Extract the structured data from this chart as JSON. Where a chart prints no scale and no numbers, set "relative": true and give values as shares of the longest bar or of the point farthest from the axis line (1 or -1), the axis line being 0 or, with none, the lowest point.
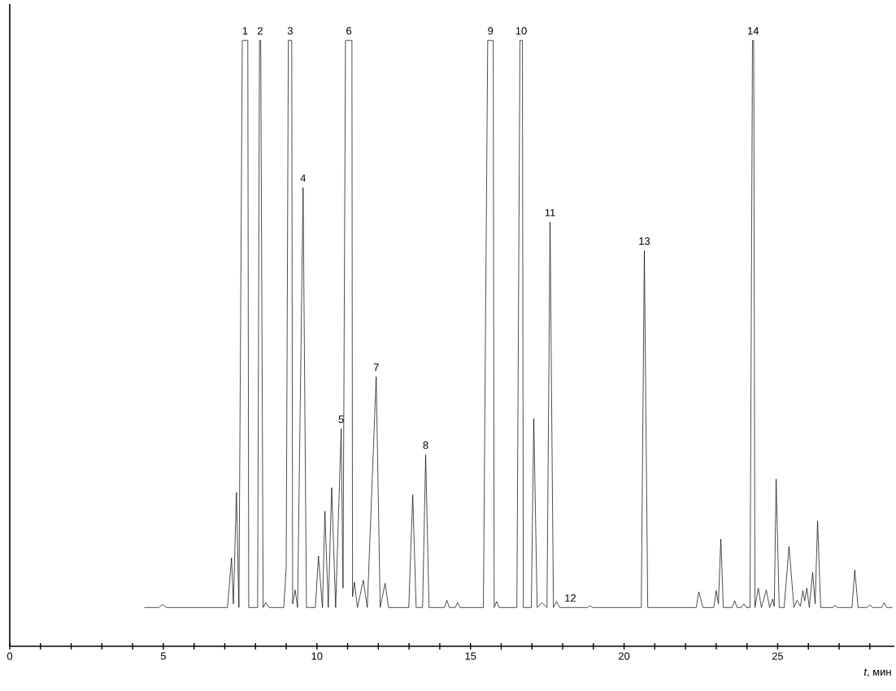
{
  "chart_data": {
    "type": "line",
    "relative": true,
    "xlabel": "*t*, мин",
    "color": "#000000",
    "xlim": [
      0,
      28.8
    ],
    "xticks": [
      0,
      {
        "value": 1,
        "label": null
      },
      {
        "value": 2,
        "label": null
      },
      {
        "value": 3,
        "label": null
      },
      {
        "value": 4,
        "label": null
      },
      5,
      {
        "value": 6,
        "label": null
      },
      {
        "value": 7,
        "label": null
      },
      {
        "value": 8,
        "label": null
      },
      {
        "value": 9,
        "label": null
      },
      10,
      {
        "value": 11,
        "label": null
      },
      {
        "value": 12,
        "label": null
      },
      {
        "value": 13,
        "label": null
      },
      {
        "value": 14,
        "label": null
      },
      15,
      {
        "value": 16,
        "label": null
      },
      {
        "value": 17,
        "label": null
      },
      {
        "value": 18,
        "label": null
      },
      {
        "value": 19,
        "label": null
      },
      20,
      {
        "value": 21,
        "label": null
      },
      {
        "value": 22,
        "label": null
      },
      {
        "value": 23,
        "label": null
      },
      {
        "value": 24,
        "label": null
      },
      25,
      {
        "value": 26,
        "label": null
      },
      {
        "value": 27,
        "label": null
      },
      {
        "value": 28,
        "label": null
      }
    ],
    "x": [
      4.39,
      4.85,
      4.97,
      5.1,
      7.09,
      7.22,
      7.28,
      7.38,
      7.46,
      7.57,
      7.75,
      7.78,
      8.07,
      8.13,
      8.17,
      8.25,
      8.33,
      8.45,
      8.92,
      9.0,
      9.07,
      9.18,
      9.21,
      9.29,
      9.37,
      9.55,
      9.66,
      9.95,
      10.05,
      10.18,
      10.26,
      10.37,
      10.48,
      10.61,
      10.79,
      10.85,
      10.93,
      11.14,
      11.16,
      11.22,
      11.32,
      11.51,
      11.64,
      11.93,
      12.06,
      12.22,
      12.33,
      12.99,
      13.12,
      13.23,
      13.44,
      13.54,
      13.65,
      14.15,
      14.23,
      14.31,
      14.5,
      14.58,
      14.66,
      15.42,
      15.56,
      15.74,
      15.77,
      15.85,
      15.93,
      16.51,
      16.61,
      16.69,
      16.72,
      16.98,
      17.06,
      17.17,
      17.33,
      17.49,
      17.59,
      17.7,
      17.8,
      17.9,
      18.81,
      18.89,
      18.97,
      20.56,
      20.66,
      20.77,
      22.35,
      22.43,
      22.57,
      22.92,
      23.0,
      23.07,
      23.15,
      23.23,
      23.52,
      23.6,
      23.68,
      23.82,
      23.9,
      23.98,
      24.1,
      24.18,
      24.22,
      24.26,
      24.37,
      24.47,
      24.63,
      24.74,
      24.84,
      24.89,
      24.95,
      25.05,
      25.21,
      25.37,
      25.53,
      25.63,
      25.74,
      25.82,
      25.88,
      25.95,
      26.03,
      26.14,
      26.22,
      26.3,
      26.4,
      26.8,
      26.87,
      26.95,
      27.42,
      27.51,
      27.62,
      27.9,
      28.0,
      28.1,
      28.39,
      28.47,
      28.55,
      28.73
    ],
    "values": [
      0.064,
      0.064,
      0.069,
      0.064,
      0.064,
      0.146,
      0.07,
      0.254,
      0.064,
      1,
      1,
      0.064,
      0.064,
      1,
      1,
      0.064,
      0.072,
      0.064,
      0.064,
      0.129,
      1,
      1,
      0.07,
      0.093,
      0.064,
      0.757,
      0.064,
      0.064,
      0.149,
      0.064,
      0.223,
      0.064,
      0.262,
      0.064,
      0.359,
      0.096,
      1,
      1,
      0.082,
      0.106,
      0.064,
      0.109,
      0.064,
      0.445,
      0.064,
      0.104,
      0.064,
      0.064,
      0.25,
      0.064,
      0.064,
      0.316,
      0.064,
      0.064,
      0.076,
      0.064,
      0.064,
      0.072,
      0.064,
      0.064,
      1,
      1,
      0.064,
      0.074,
      0.064,
      0.064,
      1,
      1,
      0.064,
      0.064,
      0.376,
      0.064,
      0.072,
      0.064,
      0.7,
      0.064,
      0.074,
      0.064,
      0.064,
      0.067,
      0.064,
      0.064,
      0.653,
      0.064,
      0.064,
      0.09,
      0.064,
      0.064,
      0.092,
      0.07,
      0.177,
      0.064,
      0.064,
      0.075,
      0.064,
      0.064,
      0.07,
      0.064,
      0.064,
      1,
      1,
      0.064,
      0.096,
      0.064,
      0.093,
      0.064,
      0.078,
      0.066,
      0.276,
      0.064,
      0.064,
      0.165,
      0.064,
      0.076,
      0.066,
      0.092,
      0.075,
      0.096,
      0.064,
      0.122,
      0.07,
      0.207,
      0.064,
      0.064,
      0.068,
      0.064,
      0.064,
      0.126,
      0.064,
      0.064,
      0.068,
      0.064,
      0.064,
      0.072,
      0.064,
      0.064
    ],
    "annotations": [
      {
        "text": "1",
        "x": 7.66,
        "y": 1
      },
      {
        "text": "2",
        "x": 8.15,
        "y": 1
      },
      {
        "text": "3",
        "x": 9.13,
        "y": 1
      },
      {
        "text": "4",
        "x": 9.55,
        "y": 0.757
      },
      {
        "text": "5",
        "x": 10.79,
        "y": 0.359
      },
      {
        "text": "6",
        "x": 11.04,
        "y": 1
      },
      {
        "text": "7",
        "x": 11.93,
        "y": 0.445
      },
      {
        "text": "8",
        "x": 13.54,
        "y": 0.316
      },
      {
        "text": "9",
        "x": 15.65,
        "y": 1
      },
      {
        "text": "10",
        "x": 16.65,
        "y": 1
      },
      {
        "text": "11",
        "x": 17.59,
        "y": 0.7
      },
      {
        "text": "12",
        "x": 18.25,
        "y": 0.064
      },
      {
        "text": "13",
        "x": 20.66,
        "y": 0.653
      },
      {
        "text": "14",
        "x": 24.2,
        "y": 1
      }
    ]
  }
}
